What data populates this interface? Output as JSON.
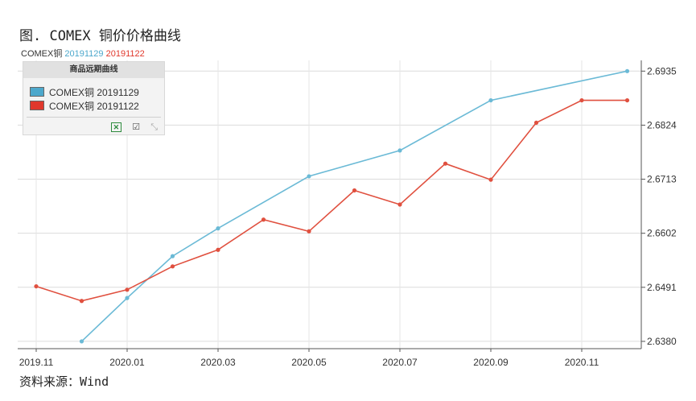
{
  "figure_title": "图. COMEX 铜价价格曲线",
  "source": "资料来源：Wind",
  "legend_header": {
    "name": "COMEX铜",
    "series1": "20191129",
    "series2": "20191122"
  },
  "legend_panel": {
    "title": "商品远期曲线",
    "items": [
      {
        "label": "COMEX铜 20191129",
        "color": "#4da8cc"
      },
      {
        "label": "COMEX铜 20191122",
        "color": "#e0382c"
      }
    ],
    "icons": [
      "excel-icon",
      "edit-icon",
      "expand-icon"
    ]
  },
  "chart_data": {
    "type": "line",
    "x_tick_labels": [
      "2019.11",
      "2020.01",
      "2020.03",
      "2020.05",
      "2020.07",
      "2020.09",
      "2020.11"
    ],
    "y_tick_labels": [
      "2.6935",
      "2.6824",
      "2.6713",
      "2.6602",
      "2.6491",
      "2.6380"
    ],
    "ylim": [
      2.6365,
      2.6957
    ],
    "grid": true,
    "legend_position": "top-left",
    "series": [
      {
        "name": "COMEX铜 20191129",
        "color": "#6bbad6",
        "x": [
          "2019-12",
          "2020-01",
          "2020-02",
          "2020-03",
          "2020-05",
          "2020-07",
          "2020-09",
          "2020-12"
        ],
        "y": [
          2.638,
          2.6469,
          2.6555,
          2.6612,
          2.6719,
          2.6772,
          2.6875,
          2.6935
        ]
      },
      {
        "name": "COMEX铜 20191122",
        "color": "#e0503f",
        "x": [
          "2019-11",
          "2019-12",
          "2020-01",
          "2020-02",
          "2020-03",
          "2020-04",
          "2020-05",
          "2020-06",
          "2020-07",
          "2020-08",
          "2020-09",
          "2020-10",
          "2020-11",
          "2020-12"
        ],
        "y": [
          2.6493,
          2.6463,
          2.6486,
          2.6534,
          2.6568,
          2.663,
          2.6606,
          2.669,
          2.6661,
          2.6745,
          2.6712,
          2.6829,
          2.6875,
          2.6875
        ]
      }
    ]
  }
}
